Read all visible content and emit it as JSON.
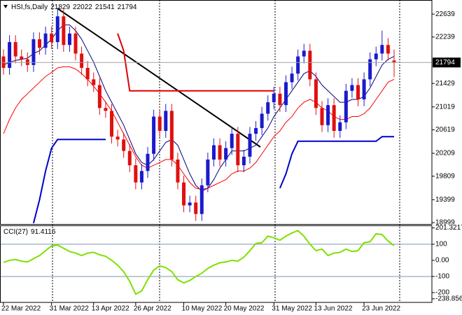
{
  "chart_data": [
    {
      "type": "candlestick",
      "title": "HSI,fs,Daily",
      "categories": [
        "22 Mar 2022",
        null,
        null,
        null,
        null,
        null,
        null,
        null,
        "31 Mar 2022",
        null,
        null,
        null,
        null,
        null,
        null,
        "13 Apr 2022",
        null,
        null,
        null,
        null,
        null,
        null,
        "26 Apr 2022",
        null,
        null,
        null,
        null,
        null,
        null,
        null,
        "10 May 2022",
        null,
        null,
        null,
        null,
        null,
        null,
        "20 May 2022",
        null,
        null,
        null,
        null,
        null,
        null,
        null,
        "31 May 2022",
        null,
        null,
        null,
        null,
        null,
        null,
        "13 Jun 2022",
        null,
        null,
        null,
        null,
        null,
        null,
        null,
        "23 Jun 2022",
        null,
        null,
        null,
        null,
        null
      ],
      "open": [
        21900,
        21700,
        22150,
        21900,
        21850,
        21750,
        22200,
        22050,
        22300,
        22150,
        22600,
        22100,
        22300,
        21950,
        21700,
        21500,
        21400,
        21000,
        20950,
        20500,
        20450,
        20250,
        20000,
        19700,
        19900,
        20200,
        20850,
        20600,
        20950,
        20100,
        19700,
        19300,
        19350,
        19150,
        19650,
        20100,
        20350,
        20100,
        20300,
        20550,
        20000,
        20150,
        20550,
        20650,
        20900,
        21100,
        21250,
        21050,
        21450,
        21600,
        21900,
        22000,
        21500,
        21000,
        20700,
        21050,
        20600,
        20750,
        21300,
        21400,
        21150,
        21500,
        21850,
        21950,
        22100,
        21829
      ],
      "high": [
        22020,
        22270,
        22270,
        22020,
        21970,
        22320,
        22320,
        22420,
        22420,
        22720,
        22720,
        22420,
        22420,
        22070,
        21820,
        21620,
        21520,
        21120,
        21070,
        20620,
        20570,
        20370,
        20120,
        20020,
        20320,
        20970,
        20970,
        21070,
        21070,
        20220,
        19820,
        19470,
        19470,
        19770,
        20220,
        20470,
        20470,
        20420,
        20670,
        20670,
        20270,
        20670,
        20770,
        21020,
        21220,
        21370,
        21370,
        21570,
        21720,
        22020,
        22120,
        22120,
        21620,
        21120,
        21170,
        21170,
        20870,
        21420,
        21520,
        21520,
        21620,
        21970,
        22070,
        22350,
        22220,
        22022
      ],
      "low": [
        21580,
        21580,
        21780,
        21730,
        21630,
        21630,
        21930,
        21930,
        22030,
        22030,
        21980,
        21980,
        21830,
        21580,
        21380,
        21280,
        20880,
        20830,
        20380,
        20330,
        20130,
        19880,
        19580,
        19580,
        19780,
        20080,
        20480,
        20480,
        19980,
        19580,
        19180,
        19180,
        19030,
        19030,
        19530,
        19980,
        19980,
        19980,
        20180,
        19880,
        19880,
        20030,
        20430,
        20530,
        20780,
        20980,
        20930,
        20930,
        21330,
        21480,
        21780,
        21380,
        20880,
        20580,
        20580,
        20480,
        20480,
        20630,
        21180,
        21030,
        21030,
        21380,
        21730,
        21830,
        21830,
        21541
      ],
      "close": [
        21700,
        22150,
        21900,
        21850,
        21750,
        22200,
        22050,
        22300,
        22150,
        22600,
        22100,
        22300,
        21950,
        21700,
        21500,
        21400,
        21000,
        20950,
        20500,
        20450,
        20250,
        20000,
        19700,
        19900,
        20200,
        20850,
        20600,
        20950,
        20100,
        19700,
        19300,
        19350,
        19150,
        19650,
        20100,
        20350,
        20100,
        20300,
        20550,
        20000,
        20150,
        20550,
        20650,
        20900,
        21100,
        21250,
        21050,
        21450,
        21600,
        21900,
        22000,
        21500,
        21000,
        20700,
        21050,
        20600,
        20750,
        21300,
        21400,
        21150,
        21500,
        21850,
        21950,
        22100,
        21950,
        21794
      ],
      "up_color": "#1a1acc",
      "down_color": "#e01010",
      "series": [
        {
          "color": "#000080",
          "line_width": 1,
          "values": [
            21750,
            21800,
            21830,
            21850,
            21870,
            21950,
            22000,
            22100,
            22200,
            22350,
            22450,
            22450,
            22350,
            22200,
            22000,
            21800,
            21550,
            21300,
            21100,
            20900,
            20700,
            20450,
            20200,
            20050,
            20000,
            20100,
            20250,
            20400,
            20450,
            20350,
            20100,
            19850,
            19650,
            19550,
            19600,
            19750,
            19950,
            20100,
            20250,
            20250,
            20250,
            20300,
            20350,
            20500,
            20650,
            20850,
            21000,
            21150,
            21300,
            21450,
            21600,
            21650,
            21550,
            21400,
            21300,
            21200,
            21100,
            21100,
            21150,
            21150,
            21200,
            21350,
            21550,
            21750,
            21850,
            21900
          ]
        },
        {
          "color": "#ff0000",
          "line_width": 1,
          "values": [
            20550,
            20800,
            21000,
            21150,
            21250,
            21350,
            21450,
            21550,
            21620,
            21700,
            21720,
            21720,
            21680,
            21600,
            21500,
            21380,
            21250,
            21100,
            20950,
            20750,
            20550,
            20350,
            20150,
            20000,
            19950,
            20000,
            20050,
            20100,
            20100,
            20000,
            19850,
            19700,
            19600,
            19580,
            19600,
            19650,
            19700,
            19750,
            19850,
            19900,
            19900,
            19950,
            20050,
            20200,
            20350,
            20500,
            20600,
            20750,
            20850,
            21000,
            21100,
            21150,
            21100,
            21000,
            20950,
            20850,
            20800,
            20800,
            20850,
            20850,
            20900,
            21000,
            21150,
            21300,
            21450,
            21500
          ]
        },
        {
          "color": "#e00000",
          "line_width": 2,
          "values": [
            null,
            null,
            null,
            null,
            null,
            null,
            null,
            null,
            null,
            null,
            null,
            null,
            null,
            null,
            null,
            null,
            null,
            null,
            null,
            22300,
            22000,
            21300,
            21300,
            21300,
            21300,
            21300,
            21300,
            21300,
            21300,
            21300,
            21300,
            21300,
            21300,
            21300,
            21300,
            21300,
            21300,
            21300,
            21300,
            21300,
            21300,
            21300,
            21300,
            21300,
            21300,
            21300,
            null,
            null,
            null,
            null,
            null,
            null,
            null,
            null,
            null,
            null,
            null,
            null,
            null,
            null,
            null,
            null,
            null,
            null,
            null,
            null
          ]
        },
        {
          "color": "#0000cc",
          "line_width": 2,
          "values": [
            null,
            null,
            null,
            null,
            null,
            18990,
            19400,
            19900,
            20300,
            20450,
            20450,
            20450,
            20450,
            20450,
            20450,
            20450,
            20450,
            20450,
            null,
            null,
            null,
            null,
            null,
            null,
            null,
            null,
            null,
            null,
            null,
            null,
            null,
            null,
            null,
            null,
            null,
            null,
            null,
            null,
            null,
            null,
            null,
            null,
            null,
            null,
            null,
            null,
            19600,
            19850,
            20200,
            20420,
            20420,
            20420,
            20420,
            20420,
            20420,
            20420,
            20420,
            20420,
            20420,
            20420,
            20420,
            20420,
            20420,
            20500,
            20500,
            20500
          ]
        }
      ],
      "ylim": [
        18975,
        22885
      ],
      "yticks": [
        22639,
        22239,
        21429,
        21019,
        20619,
        20209,
        19809,
        19399,
        18999
      ]
    },
    {
      "type": "line",
      "title": "CCI(27)",
      "series": [
        {
          "color": "#7fe000",
          "line_width": 2,
          "values": [
            -13,
            0,
            5,
            -5,
            -10,
            10,
            30,
            60,
            90,
            95,
            75,
            55,
            45,
            30,
            45,
            50,
            35,
            25,
            0,
            -30,
            -70,
            -130,
            -210,
            -190,
            -120,
            -60,
            -35,
            -45,
            -70,
            -120,
            -140,
            -125,
            -100,
            -80,
            -50,
            -30,
            -15,
            -10,
            0,
            -5,
            20,
            60,
            105,
            110,
            150,
            140,
            125,
            150,
            170,
            185,
            150,
            100,
            60,
            70,
            30,
            45,
            50,
            70,
            55,
            60,
            110,
            115,
            165,
            160,
            120,
            91.4116
          ]
        }
      ],
      "levels": [
        100,
        -100
      ],
      "ylim": [
        -261,
        217
      ],
      "yticks": [
        201.3217,
        100,
        {
          "value": 0,
          "label": "0.00"
        },
        -100,
        -200,
        -238.856
      ]
    }
  ]
}
